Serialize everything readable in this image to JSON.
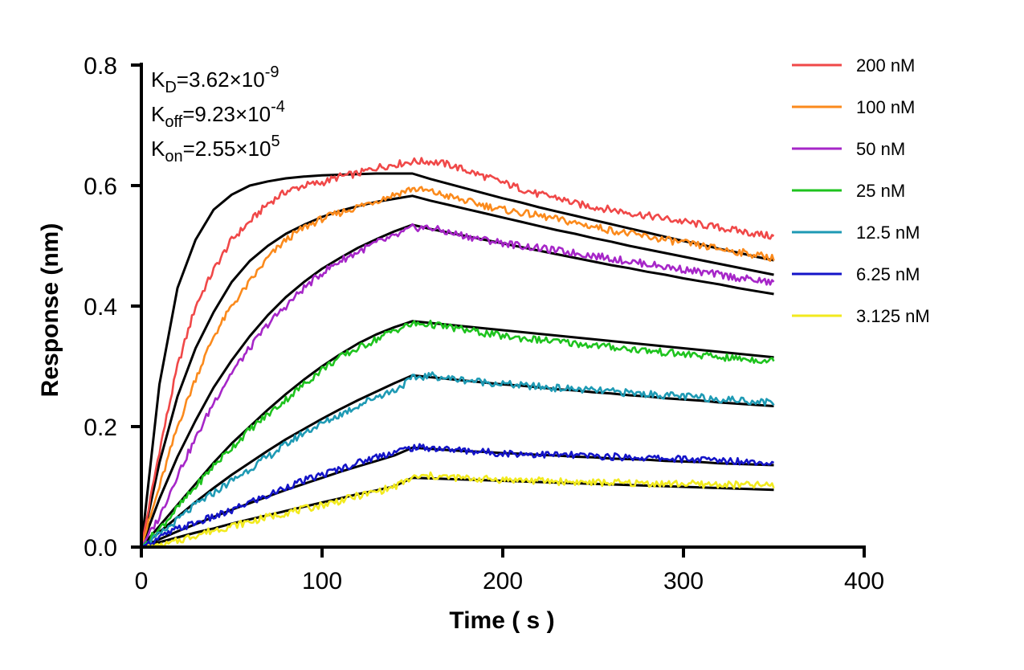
{
  "chart_data": {
    "type": "line",
    "title": "",
    "xlabel": "Time ( s )",
    "ylabel": "Response (nm)",
    "xlim": [
      0,
      400
    ],
    "ylim": [
      0,
      0.8
    ],
    "xticks": [
      0,
      100,
      200,
      300,
      400
    ],
    "yticks": [
      0.0,
      0.2,
      0.4,
      0.6,
      0.8
    ],
    "xtick_labels": [
      "0",
      "100",
      "200",
      "300",
      "400"
    ],
    "ytick_labels": [
      "0.0",
      "0.2",
      "0.4",
      "0.6",
      "0.8"
    ],
    "grid": false,
    "legend_position": "top-right",
    "annotations": {
      "kd": {
        "main": "K",
        "sub": "D",
        "value": "=3.62×10",
        "exp": "-9"
      },
      "koff": {
        "main": "K",
        "sub": "off",
        "value": "=9.23×10",
        "exp": "-4"
      },
      "kon": {
        "main": "K",
        "sub": "on",
        "value": "=2.55×10",
        "exp": "5"
      }
    },
    "fit_color": "#000000",
    "series": [
      {
        "name": "200 nM",
        "color": "#f04848",
        "x": [
          0,
          10,
          20,
          30,
          40,
          50,
          60,
          70,
          80,
          90,
          100,
          110,
          120,
          130,
          140,
          150,
          160,
          170,
          180,
          190,
          200,
          210,
          220,
          230,
          240,
          250,
          260,
          270,
          280,
          290,
          300,
          310,
          320,
          330,
          340,
          350
        ],
        "y": [
          0.0,
          0.16,
          0.3,
          0.4,
          0.46,
          0.51,
          0.54,
          0.57,
          0.59,
          0.6,
          0.605,
          0.615,
          0.62,
          0.63,
          0.635,
          0.64,
          0.64,
          0.635,
          0.625,
          0.615,
          0.605,
          0.595,
          0.585,
          0.58,
          0.57,
          0.565,
          0.56,
          0.555,
          0.55,
          0.545,
          0.54,
          0.535,
          0.53,
          0.525,
          0.52,
          0.515
        ],
        "fit_y": [
          0.0,
          0.27,
          0.43,
          0.51,
          0.56,
          0.585,
          0.6,
          0.607,
          0.612,
          0.615,
          0.617,
          0.618,
          0.619,
          0.62,
          0.62,
          0.62,
          0.611,
          0.603,
          0.595,
          0.587,
          0.579,
          0.572,
          0.564,
          0.557,
          0.55,
          0.543,
          0.536,
          0.529,
          0.522,
          0.515,
          0.508,
          0.502,
          0.495,
          0.489,
          0.482,
          0.476
        ]
      },
      {
        "name": "100 nM",
        "color": "#fb8a1c",
        "x": [
          0,
          10,
          20,
          30,
          40,
          50,
          60,
          70,
          80,
          90,
          100,
          110,
          120,
          130,
          140,
          150,
          160,
          170,
          180,
          190,
          200,
          210,
          220,
          230,
          240,
          250,
          260,
          270,
          280,
          290,
          300,
          310,
          320,
          330,
          340,
          350
        ],
        "y": [
          0.0,
          0.1,
          0.2,
          0.28,
          0.35,
          0.4,
          0.44,
          0.48,
          0.51,
          0.53,
          0.545,
          0.555,
          0.565,
          0.575,
          0.585,
          0.595,
          0.59,
          0.582,
          0.574,
          0.567,
          0.56,
          0.555,
          0.55,
          0.544,
          0.538,
          0.532,
          0.526,
          0.52,
          0.515,
          0.51,
          0.505,
          0.5,
          0.495,
          0.49,
          0.485,
          0.48
        ],
        "fit_y": [
          0.0,
          0.14,
          0.25,
          0.33,
          0.39,
          0.44,
          0.475,
          0.5,
          0.52,
          0.535,
          0.548,
          0.558,
          0.566,
          0.573,
          0.578,
          0.583,
          0.575,
          0.568,
          0.561,
          0.554,
          0.547,
          0.54,
          0.533,
          0.526,
          0.52,
          0.513,
          0.507,
          0.5,
          0.494,
          0.488,
          0.482,
          0.476,
          0.47,
          0.464,
          0.458,
          0.452
        ]
      },
      {
        "name": "50 nM",
        "color": "#a626c8",
        "x": [
          0,
          10,
          20,
          30,
          40,
          50,
          60,
          70,
          80,
          90,
          100,
          110,
          120,
          130,
          140,
          150,
          160,
          170,
          180,
          190,
          200,
          210,
          220,
          230,
          240,
          250,
          260,
          270,
          280,
          290,
          300,
          310,
          320,
          330,
          340,
          350
        ],
        "y": [
          0.0,
          0.05,
          0.12,
          0.18,
          0.24,
          0.29,
          0.33,
          0.37,
          0.4,
          0.43,
          0.455,
          0.475,
          0.49,
          0.505,
          0.515,
          0.53,
          0.53,
          0.522,
          0.516,
          0.51,
          0.505,
          0.5,
          0.496,
          0.492,
          0.488,
          0.484,
          0.479,
          0.474,
          0.47,
          0.465,
          0.461,
          0.456,
          0.452,
          0.447,
          0.443,
          0.438
        ],
        "fit_y": [
          0.0,
          0.08,
          0.15,
          0.21,
          0.265,
          0.31,
          0.35,
          0.385,
          0.415,
          0.44,
          0.462,
          0.48,
          0.497,
          0.511,
          0.524,
          0.535,
          0.528,
          0.522,
          0.516,
          0.51,
          0.504,
          0.498,
          0.492,
          0.486,
          0.48,
          0.474,
          0.468,
          0.463,
          0.457,
          0.452,
          0.446,
          0.441,
          0.436,
          0.43,
          0.425,
          0.42
        ]
      },
      {
        "name": "25 nM",
        "color": "#1ec31e",
        "x": [
          0,
          10,
          20,
          30,
          40,
          50,
          60,
          70,
          80,
          90,
          100,
          110,
          120,
          130,
          140,
          150,
          160,
          170,
          180,
          190,
          200,
          210,
          220,
          230,
          240,
          250,
          260,
          270,
          280,
          290,
          300,
          310,
          320,
          330,
          340,
          350
        ],
        "y": [
          0.0,
          0.03,
          0.065,
          0.1,
          0.135,
          0.165,
          0.195,
          0.22,
          0.245,
          0.27,
          0.295,
          0.315,
          0.33,
          0.345,
          0.36,
          0.37,
          0.37,
          0.365,
          0.36,
          0.355,
          0.35,
          0.347,
          0.344,
          0.341,
          0.338,
          0.335,
          0.332,
          0.329,
          0.326,
          0.323,
          0.32,
          0.318,
          0.315,
          0.313,
          0.311,
          0.309
        ],
        "fit_y": [
          0.0,
          0.035,
          0.07,
          0.105,
          0.14,
          0.172,
          0.2,
          0.228,
          0.254,
          0.278,
          0.3,
          0.32,
          0.338,
          0.353,
          0.365,
          0.375,
          0.372,
          0.369,
          0.366,
          0.363,
          0.36,
          0.357,
          0.354,
          0.351,
          0.348,
          0.345,
          0.342,
          0.339,
          0.336,
          0.333,
          0.33,
          0.327,
          0.324,
          0.321,
          0.318,
          0.315
        ]
      },
      {
        "name": "12.5 nM",
        "color": "#1e9ab4",
        "x": [
          0,
          10,
          20,
          30,
          40,
          50,
          60,
          70,
          80,
          90,
          100,
          110,
          120,
          130,
          140,
          150,
          160,
          170,
          180,
          190,
          200,
          210,
          220,
          230,
          240,
          250,
          260,
          270,
          280,
          290,
          300,
          310,
          320,
          330,
          340,
          350
        ],
        "y": [
          0.0,
          0.02,
          0.045,
          0.07,
          0.09,
          0.11,
          0.13,
          0.15,
          0.17,
          0.19,
          0.205,
          0.22,
          0.235,
          0.25,
          0.26,
          0.28,
          0.285,
          0.28,
          0.277,
          0.274,
          0.271,
          0.268,
          0.266,
          0.264,
          0.262,
          0.26,
          0.258,
          0.256,
          0.254,
          0.252,
          0.25,
          0.248,
          0.246,
          0.244,
          0.242,
          0.24
        ],
        "fit_y": [
          0.0,
          0.025,
          0.05,
          0.075,
          0.098,
          0.12,
          0.14,
          0.16,
          0.179,
          0.196,
          0.213,
          0.229,
          0.244,
          0.258,
          0.272,
          0.285,
          0.282,
          0.279,
          0.276,
          0.273,
          0.27,
          0.268,
          0.265,
          0.262,
          0.26,
          0.257,
          0.255,
          0.252,
          0.25,
          0.247,
          0.245,
          0.243,
          0.24,
          0.238,
          0.236,
          0.234
        ]
      },
      {
        "name": "6.25 nM",
        "color": "#1414c8",
        "x": [
          0,
          10,
          20,
          30,
          40,
          50,
          60,
          70,
          80,
          90,
          100,
          110,
          120,
          130,
          140,
          150,
          160,
          170,
          180,
          190,
          200,
          210,
          220,
          230,
          240,
          250,
          260,
          270,
          280,
          290,
          300,
          310,
          320,
          330,
          340,
          350
        ],
        "y": [
          0.0,
          0.015,
          0.03,
          0.04,
          0.05,
          0.06,
          0.075,
          0.085,
          0.1,
          0.11,
          0.12,
          0.13,
          0.14,
          0.15,
          0.158,
          0.165,
          0.165,
          0.162,
          0.16,
          0.158,
          0.156,
          0.155,
          0.154,
          0.153,
          0.152,
          0.151,
          0.15,
          0.149,
          0.148,
          0.147,
          0.146,
          0.145,
          0.144,
          0.143,
          0.142,
          0.141
        ],
        "fit_y": [
          0.0,
          0.013,
          0.026,
          0.038,
          0.05,
          0.062,
          0.073,
          0.084,
          0.095,
          0.105,
          0.115,
          0.125,
          0.134,
          0.143,
          0.152,
          0.165,
          0.163,
          0.161,
          0.159,
          0.158,
          0.156,
          0.155,
          0.153,
          0.152,
          0.15,
          0.149,
          0.147,
          0.146,
          0.145,
          0.143,
          0.142,
          0.141,
          0.139,
          0.138,
          0.137,
          0.136
        ]
      },
      {
        "name": "3.125 nM",
        "color": "#f2ea1e",
        "x": [
          0,
          10,
          20,
          30,
          40,
          50,
          60,
          70,
          80,
          90,
          100,
          110,
          120,
          130,
          140,
          150,
          160,
          170,
          180,
          190,
          200,
          210,
          220,
          230,
          240,
          250,
          260,
          270,
          280,
          290,
          300,
          310,
          320,
          330,
          340,
          350
        ],
        "y": [
          0.0,
          0.0,
          0.01,
          0.02,
          0.028,
          0.035,
          0.042,
          0.05,
          0.057,
          0.063,
          0.07,
          0.077,
          0.085,
          0.092,
          0.1,
          0.115,
          0.118,
          0.116,
          0.114,
          0.113,
          0.112,
          0.111,
          0.11,
          0.109,
          0.108,
          0.107,
          0.107,
          0.106,
          0.106,
          0.105,
          0.105,
          0.104,
          0.104,
          0.103,
          0.103,
          0.102
        ],
        "fit_y": [
          0.0,
          0.008,
          0.016,
          0.024,
          0.031,
          0.039,
          0.046,
          0.053,
          0.06,
          0.067,
          0.074,
          0.081,
          0.088,
          0.094,
          0.101,
          0.115,
          0.114,
          0.113,
          0.112,
          0.111,
          0.11,
          0.109,
          0.108,
          0.107,
          0.106,
          0.105,
          0.104,
          0.103,
          0.102,
          0.101,
          0.1,
          0.099,
          0.098,
          0.097,
          0.096,
          0.095
        ]
      }
    ]
  }
}
